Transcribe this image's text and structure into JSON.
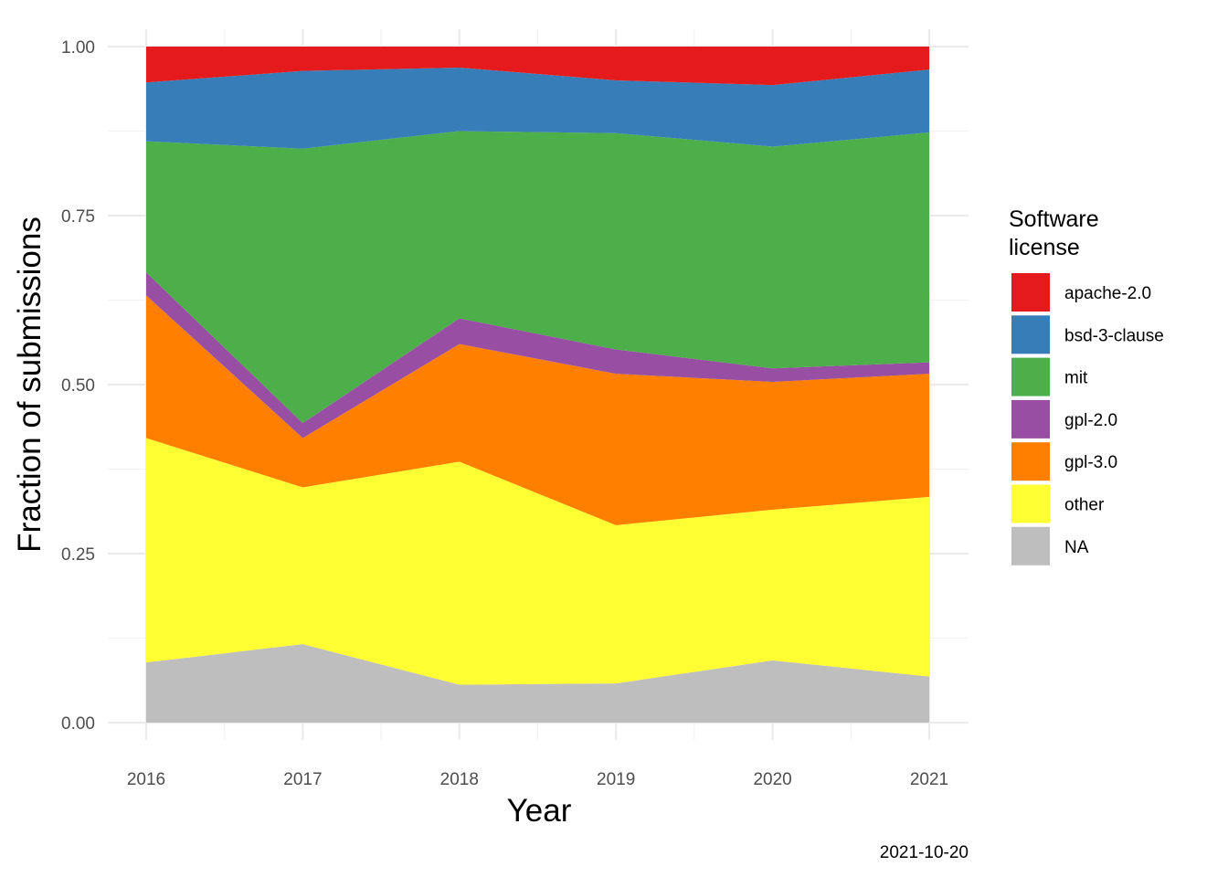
{
  "chart_data": {
    "type": "area",
    "stacked": "fill",
    "x": [
      2016,
      2017,
      2018,
      2019,
      2020,
      2021
    ],
    "xlabel": "Year",
    "ylabel": "Fraction of submissions",
    "xlim": [
      2016,
      2021
    ],
    "ylim": [
      0,
      1
    ],
    "x_ticks": [
      "2016",
      "2017",
      "2018",
      "2019",
      "2020",
      "2021"
    ],
    "y_ticks": [
      "0.00",
      "0.25",
      "0.50",
      "0.75",
      "1.00"
    ],
    "y_tick_values": [
      0,
      0.25,
      0.5,
      0.75,
      1.0
    ],
    "caption": "2021-10-20",
    "legend": {
      "title_lines": [
        "Software",
        "license"
      ],
      "position": "right"
    },
    "series": [
      {
        "name": "apache-2.0",
        "color": "#E41A1C",
        "values": [
          0.053,
          0.036,
          0.031,
          0.05,
          0.057,
          0.034
        ]
      },
      {
        "name": "bsd-3-clause",
        "color": "#377EB8",
        "values": [
          0.087,
          0.115,
          0.094,
          0.078,
          0.091,
          0.093
        ]
      },
      {
        "name": "mit",
        "color": "#4DAF4A",
        "values": [
          0.194,
          0.406,
          0.277,
          0.32,
          0.328,
          0.34
        ]
      },
      {
        "name": "gpl-2.0",
        "color": "#984EA3",
        "values": [
          0.034,
          0.022,
          0.038,
          0.036,
          0.02,
          0.017
        ]
      },
      {
        "name": "gpl-3.0",
        "color": "#FF7F00",
        "values": [
          0.211,
          0.073,
          0.174,
          0.224,
          0.189,
          0.182
        ]
      },
      {
        "name": "other",
        "color": "#FFFF33",
        "values": [
          0.332,
          0.232,
          0.33,
          0.234,
          0.223,
          0.266
        ]
      },
      {
        "name": "NA",
        "color": "#BEBEBE",
        "values": [
          0.089,
          0.116,
          0.056,
          0.058,
          0.092,
          0.068
        ]
      }
    ]
  }
}
